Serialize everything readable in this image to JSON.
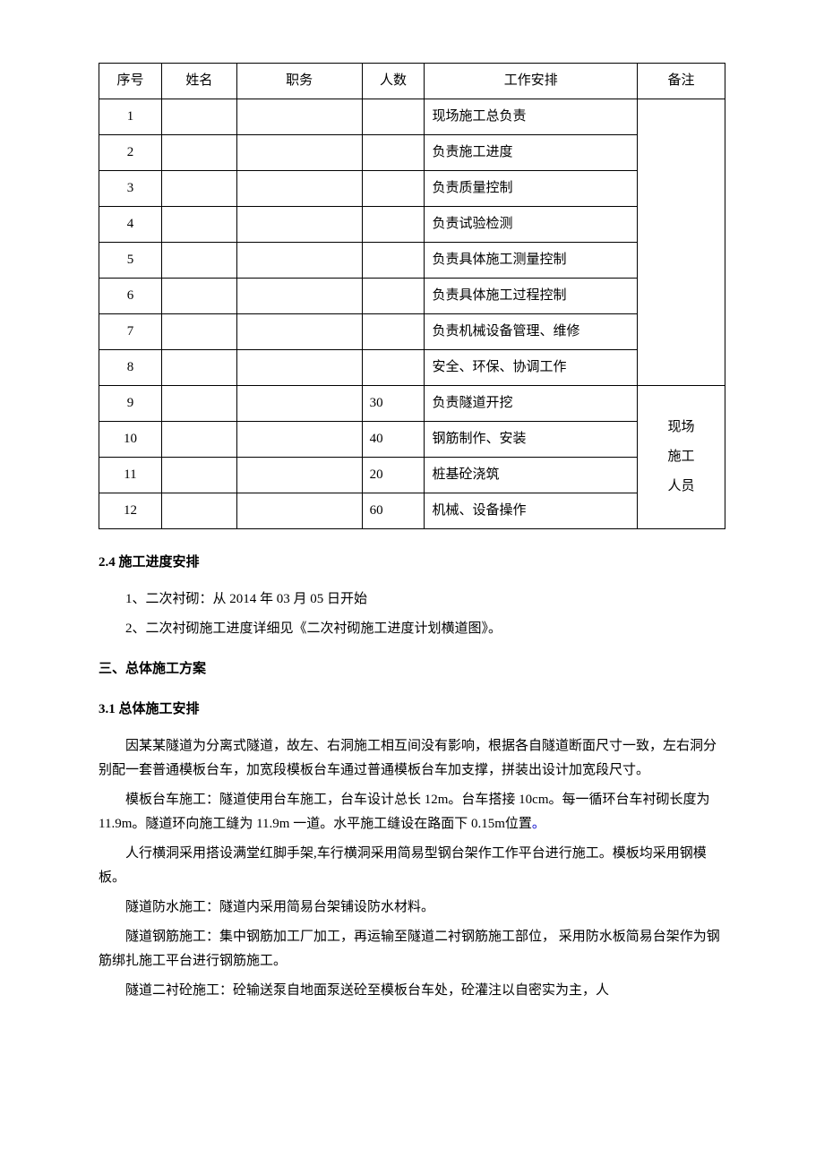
{
  "table": {
    "headers": [
      "序号",
      "姓名",
      "职务",
      "人数",
      "工作安排",
      "备注"
    ],
    "col_widths": [
      "10%",
      "12%",
      "20%",
      "10%",
      "34%",
      "14%"
    ],
    "rows": [
      {
        "seq": "1",
        "name": "",
        "role": "",
        "count": "",
        "assignment": "现场施工总负责"
      },
      {
        "seq": "2",
        "name": "",
        "role": "",
        "count": "",
        "assignment": "负责施工进度"
      },
      {
        "seq": "3",
        "name": "",
        "role": "",
        "count": "",
        "assignment": "负责质量控制"
      },
      {
        "seq": "4",
        "name": "",
        "role": "",
        "count": "",
        "assignment": "负责试验检测"
      },
      {
        "seq": "5",
        "name": "",
        "role": "",
        "count": "",
        "assignment": "负责具体施工测量控制"
      },
      {
        "seq": "6",
        "name": "",
        "role": "",
        "count": "",
        "assignment": "负责具体施工过程控制"
      },
      {
        "seq": "7",
        "name": "",
        "role": "",
        "count": "",
        "assignment": "负责机械设备管理、维修"
      },
      {
        "seq": "8",
        "name": "",
        "role": "",
        "count": "",
        "assignment": "安全、环保、协调工作"
      },
      {
        "seq": "9",
        "name": "",
        "role": "",
        "count": "30",
        "assignment": "负责隧道开挖"
      },
      {
        "seq": "10",
        "name": "",
        "role": "",
        "count": "40",
        "assignment": "钢筋制作、安装"
      },
      {
        "seq": "11",
        "name": "",
        "role": "",
        "count": "20",
        "assignment": "桩基砼浇筑"
      },
      {
        "seq": "12",
        "name": "",
        "role": "",
        "count": "60",
        "assignment": "机械、设备操作"
      }
    ],
    "note_group_1": "",
    "note_group_2": "现场\n施工\n人员"
  },
  "sections": {
    "s2_4": {
      "title": "2.4 施工进度安排",
      "p1": "1、二次衬砌：从 2014 年 03 月 05 日开始",
      "p2": "2、二次衬砌施工进度详细见《二次衬砌施工进度计划横道图》。"
    },
    "s3": {
      "title": "三、总体施工方案"
    },
    "s3_1": {
      "title": "3.1 总体施工安排",
      "p1": "因某某隧道为分离式隧道，故左、右洞施工相互间没有影响，根据各自隧道断面尺寸一致，左右洞分别配一套普通模板台车，加宽段模板台车通过普通模板台车加支撑，拼装出设计加宽段尺寸。",
      "p2_a": "模板台车施工：隧道使用台车施工，台车设计总长 12m。台车搭接 10cm。每一循环台车衬砌长度为 11.9m。隧道环向施工缝为 11.9m 一道。水平施工缝设在路面下 0.15m位置",
      "p2_b": "。",
      "p3": "人行横洞采用搭设满堂红脚手架,车行横洞采用简易型钢台架作工作平台进行施工。模板均采用钢模板。",
      "p4": "隧道防水施工：隧道内采用简易台架铺设防水材料。",
      "p5": "隧道钢筋施工：集中钢筋加工厂加工，再运输至隧道二衬钢筋施工部位， 采用防水板简易台架作为钢筋绑扎施工平台进行钢筋施工。",
      "p6": "隧道二衬砼施工：砼输送泵自地面泵送砼至模板台车处，砼灌注以自密实为主，人"
    }
  }
}
